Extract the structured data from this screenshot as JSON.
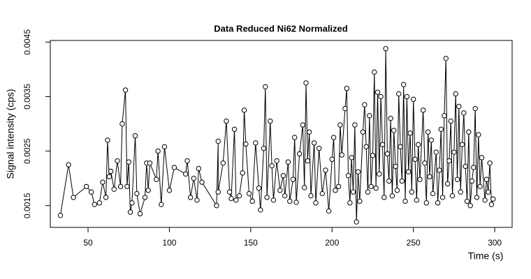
{
  "chart_data": {
    "type": "line",
    "marker": "open-circle",
    "color": "#000000",
    "title": "Data Reduced Ni62 Normalized",
    "x_label": "Time (s)",
    "y_label": "Signal intensity (cps)",
    "xlim": [
      26.8,
      310.7
    ],
    "ylim": [
      0.0011,
      0.00453
    ],
    "xticks": [
      50,
      100,
      150,
      200,
      250,
      300
    ],
    "yticks": [
      0.0015,
      0.0025,
      0.0035,
      0.0045
    ],
    "x": [
      33,
      38,
      41,
      49,
      52,
      54,
      57,
      59,
      61,
      62,
      63,
      64,
      66,
      68,
      70,
      71,
      73,
      74,
      75,
      76,
      77,
      79,
      80,
      82,
      85,
      86,
      87,
      88,
      92,
      93,
      95,
      97,
      100,
      103,
      110,
      111,
      113,
      115,
      117,
      118,
      120,
      129,
      130,
      130,
      133,
      135,
      137,
      138,
      140,
      141,
      143,
      145,
      146,
      147,
      149,
      151,
      153,
      155,
      156,
      158,
      159,
      160,
      162,
      163,
      164,
      166,
      168,
      170,
      171,
      173,
      174,
      176,
      177,
      178,
      180,
      182,
      183,
      184,
      185,
      186,
      187,
      189,
      190,
      192,
      194,
      196,
      198,
      200,
      201,
      202,
      204,
      205,
      206,
      208,
      209,
      210,
      211,
      212,
      213,
      214,
      215,
      216,
      217,
      219,
      220,
      221,
      222,
      223,
      224,
      225,
      226,
      227,
      228,
      229,
      230,
      231,
      232,
      233,
      234,
      235,
      236,
      237,
      238,
      239,
      240,
      241,
      242,
      243,
      244,
      245,
      246,
      247,
      248,
      249,
      250,
      251,
      252,
      253,
      254,
      256,
      257,
      258,
      259,
      260,
      261,
      262,
      264,
      265,
      266,
      267,
      268,
      269,
      270,
      271,
      272,
      273,
      274,
      275,
      276,
      277,
      278,
      279,
      280,
      281,
      282,
      283,
      284,
      285,
      286,
      287,
      288,
      289,
      290,
      291,
      292,
      294,
      295,
      296,
      297,
      298,
      299
    ],
    "values": [
      0.00132,
      0.00225,
      0.00165,
      0.00185,
      0.00175,
      0.00152,
      0.00155,
      0.00193,
      0.00165,
      0.0027,
      0.00203,
      0.00213,
      0.0018,
      0.00232,
      0.00185,
      0.003,
      0.00362,
      0.00185,
      0.0023,
      0.00138,
      0.00155,
      0.00278,
      0.00172,
      0.00135,
      0.00165,
      0.00228,
      0.00178,
      0.00228,
      0.00198,
      0.0025,
      0.00152,
      0.00258,
      0.00178,
      0.0022,
      0.00208,
      0.00232,
      0.00165,
      0.002,
      0.0016,
      0.00218,
      0.00193,
      0.0015,
      0.00268,
      0.00175,
      0.00228,
      0.00305,
      0.00175,
      0.00163,
      0.0029,
      0.0016,
      0.00168,
      0.0021,
      0.00325,
      0.00263,
      0.00172,
      0.00158,
      0.00265,
      0.00182,
      0.00142,
      0.00255,
      0.00368,
      0.00165,
      0.00305,
      0.00223,
      0.0016,
      0.00232,
      0.00178,
      0.00205,
      0.00168,
      0.0023,
      0.00158,
      0.00198,
      0.00275,
      0.00156,
      0.00245,
      0.00298,
      0.00183,
      0.00375,
      0.00232,
      0.00285,
      0.00168,
      0.00265,
      0.00155,
      0.00255,
      0.00172,
      0.00215,
      0.0014,
      0.00235,
      0.00275,
      0.00178,
      0.00185,
      0.00298,
      0.00243,
      0.00328,
      0.00365,
      0.00205,
      0.00155,
      0.00238,
      0.00175,
      0.00298,
      0.0012,
      0.00212,
      0.00158,
      0.00285,
      0.00335,
      0.00258,
      0.00175,
      0.00315,
      0.00185,
      0.00242,
      0.00395,
      0.00182,
      0.00358,
      0.00208,
      0.0035,
      0.00262,
      0.00165,
      0.00438,
      0.00245,
      0.00195,
      0.0031,
      0.00168,
      0.00288,
      0.00222,
      0.00178,
      0.00355,
      0.00258,
      0.00195,
      0.00372,
      0.00158,
      0.0035,
      0.00212,
      0.00283,
      0.00175,
      0.00345,
      0.00235,
      0.0016,
      0.00262,
      0.00198,
      0.00325,
      0.00228,
      0.00155,
      0.00285,
      0.00203,
      0.0027,
      0.00172,
      0.00248,
      0.00155,
      0.00215,
      0.0029,
      0.00165,
      0.00315,
      0.0042,
      0.0019,
      0.00232,
      0.00305,
      0.00168,
      0.00248,
      0.00355,
      0.00198,
      0.00332,
      0.00175,
      0.00262,
      0.0032,
      0.00222,
      0.00158,
      0.00285,
      0.0015,
      0.00195,
      0.0022,
      0.00328,
      0.00165,
      0.0028,
      0.00185,
      0.00238,
      0.0016,
      0.00198,
      0.00175,
      0.00228,
      0.00152,
      0.00162
    ]
  }
}
